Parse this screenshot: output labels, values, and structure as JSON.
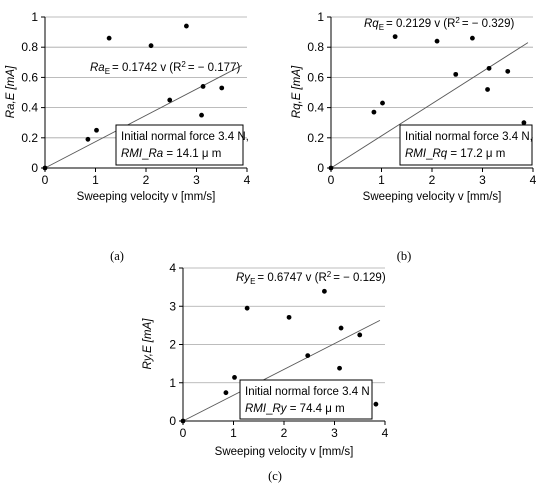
{
  "chart_data": [
    {
      "type": "scatter",
      "panel": "(a)",
      "xlabel": "Sweeping velocity v  [mm/s]",
      "ylabel": "Ra,E [mA]",
      "xlim": [
        0,
        4
      ],
      "ylim": [
        0,
        1
      ],
      "xticks": [
        0,
        1,
        2,
        3,
        4
      ],
      "yticks": [
        0,
        0.2,
        0.4,
        0.6,
        0.8,
        1
      ],
      "grid": "horizontal",
      "series": [
        {
          "x": [
            0.85,
            1.02,
            1.27,
            2.1,
            2.47,
            2.8,
            3.1,
            3.13,
            3.5
          ],
          "y": [
            0.19,
            0.25,
            0.86,
            0.81,
            0.45,
            0.94,
            0.35,
            0.54,
            0.53
          ]
        }
      ],
      "fit": {
        "slope": 0.1742,
        "xmax": 3.9
      },
      "equation": {
        "var": "Ra",
        "sub": "E",
        "text": "= 0.1742 v (R",
        "r2": "= − 0.177)"
      },
      "note": {
        "line1": "Initial normal force 3.4 N,",
        "rmi": "RMI",
        "rmisep": "_",
        "metric": "Ra",
        "value": " = 14.1  μ m"
      }
    },
    {
      "type": "scatter",
      "panel": "(b)",
      "xlabel": "Sweeping velocity v  [mm/s]",
      "ylabel": "Rq,E [mA]",
      "xlim": [
        0,
        4
      ],
      "ylim": [
        0,
        1
      ],
      "xticks": [
        0,
        1,
        2,
        3,
        4
      ],
      "yticks": [
        0,
        0.2,
        0.4,
        0.6,
        0.8,
        1
      ],
      "grid": "horizontal",
      "series": [
        {
          "x": [
            0.85,
            1.02,
            1.27,
            2.1,
            2.47,
            2.8,
            3.1,
            3.13,
            3.5,
            3.82
          ],
          "y": [
            0.37,
            0.43,
            0.87,
            0.84,
            0.62,
            0.86,
            0.52,
            0.66,
            0.64,
            0.3
          ]
        }
      ],
      "fit": {
        "slope": 0.2129,
        "xmax": 3.9
      },
      "equation": {
        "var": "Rq",
        "sub": "E",
        "text": "= 0.2129 v (R",
        "r2": "= − 0.329)"
      },
      "note": {
        "line1": "Initial normal force 3.4 N,",
        "rmi": "RMI",
        "rmisep": "_",
        "metric": "Rq",
        "value": " = 17.2  μ m"
      }
    },
    {
      "type": "scatter",
      "panel": "(c)",
      "xlabel": "Sweeping velocity v  [mm/s]",
      "ylabel": "Ry,E [mA]",
      "xlim": [
        0,
        4
      ],
      "ylim": [
        0,
        4
      ],
      "xticks": [
        0,
        1,
        2,
        3,
        4
      ],
      "yticks": [
        0,
        1,
        2,
        3,
        4
      ],
      "grid": "horizontal",
      "series": [
        {
          "x": [
            0.85,
            1.02,
            1.27,
            2.1,
            2.47,
            2.8,
            3.1,
            3.13,
            3.5,
            3.82
          ],
          "y": [
            0.74,
            1.14,
            2.95,
            2.71,
            1.71,
            3.39,
            1.38,
            2.43,
            2.25,
            0.44
          ]
        }
      ],
      "fit": {
        "slope": 0.6747,
        "xmax": 3.9
      },
      "equation": {
        "var": "Ry",
        "sub": "E",
        "text": "= 0.6747 v (R",
        "r2": "= − 0.129)"
      },
      "note": {
        "line1": "Initial normal force 3.4 N",
        "rmi": "RMI",
        "rmisep": "_",
        "metric": "Ry",
        "value": " = 74.4  μ m"
      }
    }
  ],
  "colors": {
    "axis": "#000000",
    "grid": "#a6a6a6",
    "fit": "#595959",
    "point": "#000000"
  }
}
